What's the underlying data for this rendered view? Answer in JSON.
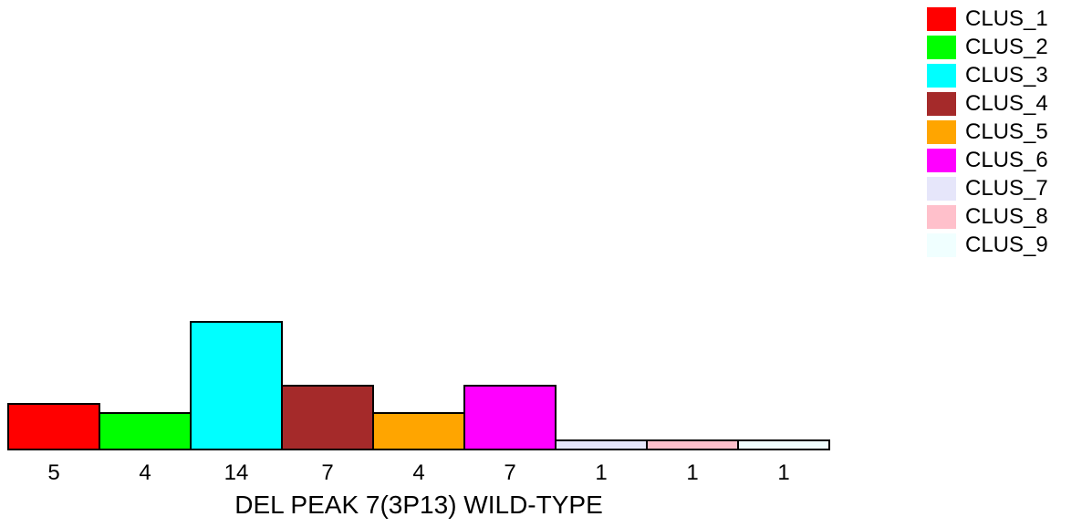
{
  "chart_data": {
    "type": "bar",
    "categories": [
      "CLUS_1",
      "CLUS_2",
      "CLUS_3",
      "CLUS_4",
      "CLUS_5",
      "CLUS_6",
      "CLUS_7",
      "CLUS_8",
      "CLUS_9"
    ],
    "values": [
      5,
      4,
      14,
      7,
      4,
      7,
      1,
      1,
      1
    ],
    "colors": [
      "#ff0000",
      "#00ff00",
      "#00ffff",
      "#a52a2a",
      "#ffa500",
      "#ff00ff",
      "#e6e6fa",
      "#ffc0cb",
      "#f0ffff"
    ],
    "xlabel": "DEL PEAK  7(3P13) WILD-TYPE",
    "legend": {
      "placement": "top-right",
      "entries": [
        "CLUS_1",
        "CLUS_2",
        "CLUS_3",
        "CLUS_4",
        "CLUS_5",
        "CLUS_6",
        "CLUS_7",
        "CLUS_8",
        "CLUS_9"
      ]
    },
    "grid": false
  }
}
